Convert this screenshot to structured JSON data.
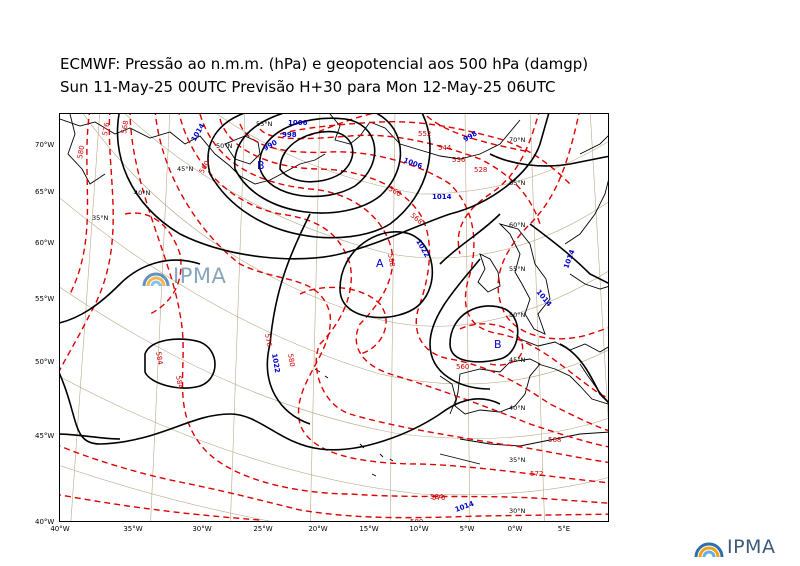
{
  "title": {
    "line1": "ECMWF:  Pressão ao n.m.m. (hPa) e geopotencial aos 500 hPa (damgp)",
    "line2": "Sun 11-May-25 00UTC Previsão H+30 para Mon 12-May-25 06UTC"
  },
  "logo": {
    "text": "IPMA"
  },
  "colors": {
    "pressure_contour": "#000000",
    "geopotential_contour": "#dd0000",
    "label_blue": "#0000cc",
    "graticule": "#b8a888"
  },
  "axes": {
    "longitude_ticks": [
      "40°W",
      "35°W",
      "30°W",
      "25°W",
      "20°W",
      "15°W",
      "10°W",
      "5°W",
      "0°W",
      "5°E"
    ],
    "latitude_ticks": [
      "70°W",
      "65°W",
      "60°W",
      "55°W",
      "50°W",
      "45°W",
      "40°W"
    ]
  },
  "graticule_labels": [
    "55°N",
    "50°N",
    "45°N",
    "40°N",
    "35°N",
    "70°N",
    "65°N",
    "60°N",
    "55°N",
    "50°N",
    "45°N",
    "40°N",
    "35°N",
    "30°N"
  ],
  "pressure_labels": [
    "1006",
    "998",
    "990",
    "1014",
    "1006",
    "1014",
    "998",
    "1022",
    "1014",
    "1022",
    "1014",
    "1014"
  ],
  "geopotential_labels": [
    "580",
    "576",
    "568",
    "560",
    "552",
    "544",
    "536",
    "528",
    "584",
    "560",
    "568",
    "576",
    "580",
    "584",
    "588",
    "560",
    "564",
    "568",
    "572",
    "576",
    "580"
  ],
  "pressure_centers": [
    {
      "type": "B"
    },
    {
      "type": "A"
    },
    {
      "type": "B"
    }
  ]
}
